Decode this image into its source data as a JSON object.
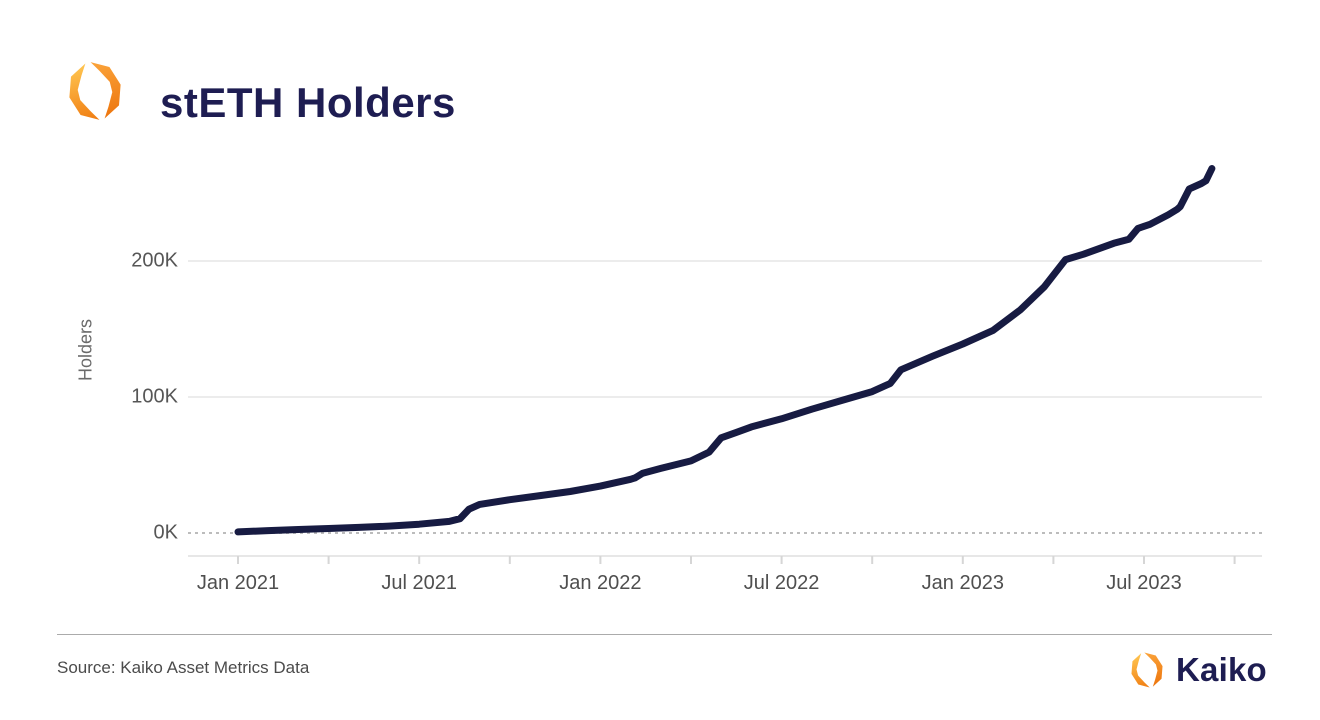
{
  "header": {
    "title": "stETH Holders",
    "logo_icon": "kaiko-logo-icon"
  },
  "colors": {
    "brand_navy": "#1e1d52",
    "brand_orange": "#f48120",
    "brand_yellow": "#ffc550",
    "axis_text": "#565656",
    "grid": "#ececec",
    "zero_line": "#bcbcbc",
    "baseline": "#e7e7e7",
    "tick": "#d6d6d6"
  },
  "chart_data": {
    "type": "line",
    "title": "stETH Holders",
    "xlabel": "",
    "ylabel": "Holders",
    "ylim": [
      0,
      275
    ],
    "grid": "horizontal only, zero line dashed",
    "legend": "none",
    "x_unit": "months since Jan 2021",
    "line_color": "#171b42",
    "yticks": [
      {
        "value": 0,
        "label": "0K"
      },
      {
        "value": 100,
        "label": "100K"
      },
      {
        "value": 200,
        "label": "200K"
      }
    ],
    "xticks": [
      {
        "t": 0,
        "label": "Jan 2021"
      },
      {
        "t": 6,
        "label": "Jul 2021"
      },
      {
        "t": 12,
        "label": "Jan 2022"
      },
      {
        "t": 18,
        "label": "Jul 2022"
      },
      {
        "t": 24,
        "label": "Jan 2023"
      },
      {
        "t": 30,
        "label": "Jul 2023"
      }
    ],
    "minor_tick_every_months": 3,
    "minor_tick_span_months": [
      0,
      33
    ],
    "series": [
      {
        "name": "stETH Holders (thousands)",
        "points": [
          [
            0,
            0.8
          ],
          [
            1,
            1.8
          ],
          [
            2,
            2.6
          ],
          [
            3,
            3.3
          ],
          [
            4,
            4.1
          ],
          [
            5,
            5.1
          ],
          [
            6,
            6.5
          ],
          [
            7,
            8.5
          ],
          [
            7.35,
            10.5
          ],
          [
            7.65,
            17.5
          ],
          [
            8,
            21
          ],
          [
            9,
            24.5
          ],
          [
            10,
            27.5
          ],
          [
            11,
            30.5
          ],
          [
            12,
            34.5
          ],
          [
            13,
            39.5
          ],
          [
            13.15,
            40.5
          ],
          [
            13.4,
            44
          ],
          [
            14,
            47.5
          ],
          [
            15,
            53
          ],
          [
            15.6,
            59.5
          ],
          [
            16,
            70
          ],
          [
            16.5,
            74
          ],
          [
            17,
            78
          ],
          [
            18,
            84
          ],
          [
            19,
            91
          ],
          [
            20,
            97.5
          ],
          [
            21,
            104
          ],
          [
            21.6,
            110
          ],
          [
            21.95,
            120
          ],
          [
            23,
            130
          ],
          [
            24,
            139
          ],
          [
            25,
            149
          ],
          [
            25.9,
            164
          ],
          [
            26.7,
            181
          ],
          [
            27.4,
            201
          ],
          [
            28,
            205
          ],
          [
            29,
            213
          ],
          [
            29.5,
            216
          ],
          [
            29.8,
            224
          ],
          [
            30.2,
            227
          ],
          [
            30.8,
            234
          ],
          [
            31.1,
            238
          ],
          [
            31.2,
            240
          ],
          [
            31.5,
            253
          ],
          [
            31.9,
            257
          ],
          [
            32.05,
            259
          ],
          [
            32.25,
            268
          ]
        ]
      }
    ]
  },
  "footer": {
    "source": "Source: Kaiko Asset Metrics Data",
    "brand": "Kaiko",
    "logo_icon": "kaiko-logo-icon"
  }
}
